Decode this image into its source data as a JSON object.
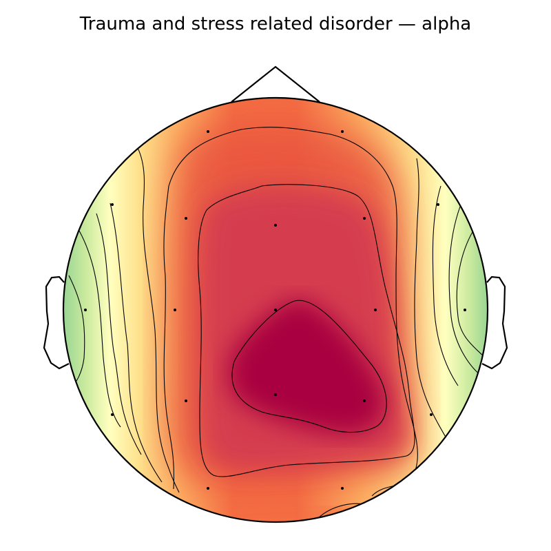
{
  "figure": {
    "title": "Trauma and stress related disorder — alpha"
  },
  "colormap": {
    "name": "Spectral",
    "high": "#9e0142",
    "mid_high": "#f46d43",
    "mid": "#fee08b",
    "low_mid": "#ffffbf",
    "low": "#99d594"
  },
  "sensors": {
    "count": 19
  }
}
